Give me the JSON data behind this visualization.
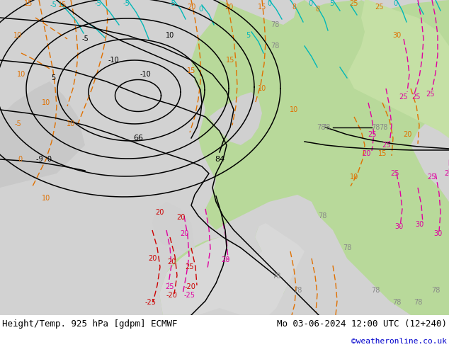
{
  "title_left": "Height/Temp. 925 hPa [gdpm] ECMWF",
  "title_right": "Mo 03-06-2024 12:00 UTC (12+240)",
  "credit": "©weatheronline.co.uk",
  "title_fontsize": 9,
  "credit_fontsize": 8,
  "title_color": "#000000",
  "credit_color": "#0000cc",
  "bottom_bar_color": "#ffffff",
  "fig_width": 6.34,
  "fig_height": 4.9,
  "dpi": 100,
  "map_green": "#b5d99c",
  "map_grey": "#c8c8c8",
  "map_white": "#e8e8e8",
  "map_light_green": "#cce8b0"
}
